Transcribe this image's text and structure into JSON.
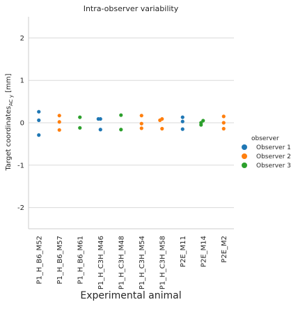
{
  "chart_data": {
    "type": "scatter",
    "title": "Intra-observer variability",
    "xlabel": "Experimental animal",
    "ylabel_main": "Target coordinates",
    "ylabel_sub": "AC y",
    "ylabel_unit": " [mm]",
    "ylim": [
      -2.5,
      2.5
    ],
    "yticks": [
      -2,
      -1,
      0,
      1,
      2
    ],
    "grid": true,
    "legend_position": "right",
    "legend_title": "observer",
    "categories": [
      "P1_H_B6_M52",
      "P1_H_B6_M57",
      "P1_H_B6_M61",
      "P1_H_C3H_M46",
      "P1_H_C3H_M48",
      "P1_H_C3H_M54",
      "P1_H_C3H_M58",
      "P2E_M11",
      "P2E_M14",
      "P2E_M2"
    ],
    "series": [
      {
        "name": "Observer 1",
        "color": "#1f77b4",
        "points": [
          {
            "category": "P1_H_B6_M52",
            "y": 0.26
          },
          {
            "category": "P1_H_B6_M52",
            "y": 0.06
          },
          {
            "category": "P1_H_B6_M52",
            "y": -0.29
          },
          {
            "category": "P1_H_C3H_M46",
            "y": 0.09
          },
          {
            "category": "P1_H_C3H_M46",
            "y": 0.09
          },
          {
            "category": "P1_H_C3H_M46",
            "y": -0.16
          },
          {
            "category": "P2E_M11",
            "y": 0.13
          },
          {
            "category": "P2E_M11",
            "y": 0.03
          },
          {
            "category": "P2E_M11",
            "y": -0.15
          }
        ]
      },
      {
        "name": "Observer 2",
        "color": "#ff7f0e",
        "points": [
          {
            "category": "P1_H_B6_M57",
            "y": 0.17
          },
          {
            "category": "P1_H_B6_M57",
            "y": 0.02
          },
          {
            "category": "P1_H_B6_M57",
            "y": -0.17
          },
          {
            "category": "P1_H_C3H_M54",
            "y": 0.17
          },
          {
            "category": "P1_H_C3H_M54",
            "y": -0.02
          },
          {
            "category": "P1_H_C3H_M54",
            "y": -0.13
          },
          {
            "category": "P1_H_C3H_M58",
            "y": 0.09
          },
          {
            "category": "P1_H_C3H_M58",
            "y": 0.06
          },
          {
            "category": "P1_H_C3H_M58",
            "y": -0.14
          },
          {
            "category": "P2E_M2",
            "y": 0.15
          },
          {
            "category": "P2E_M2",
            "y": 0.0
          },
          {
            "category": "P2E_M2",
            "y": -0.14
          }
        ]
      },
      {
        "name": "Observer 3",
        "color": "#2ca02c",
        "points": [
          {
            "category": "P1_H_B6_M61",
            "y": 0.13
          },
          {
            "category": "P1_H_B6_M61",
            "y": -0.12
          },
          {
            "category": "P1_H_C3H_M48",
            "y": 0.18
          },
          {
            "category": "P1_H_C3H_M48",
            "y": -0.16
          },
          {
            "category": "P2E_M14",
            "y": 0.05
          },
          {
            "category": "P2E_M14",
            "y": 0.0
          },
          {
            "category": "P2E_M14",
            "y": -0.05
          }
        ]
      }
    ]
  }
}
